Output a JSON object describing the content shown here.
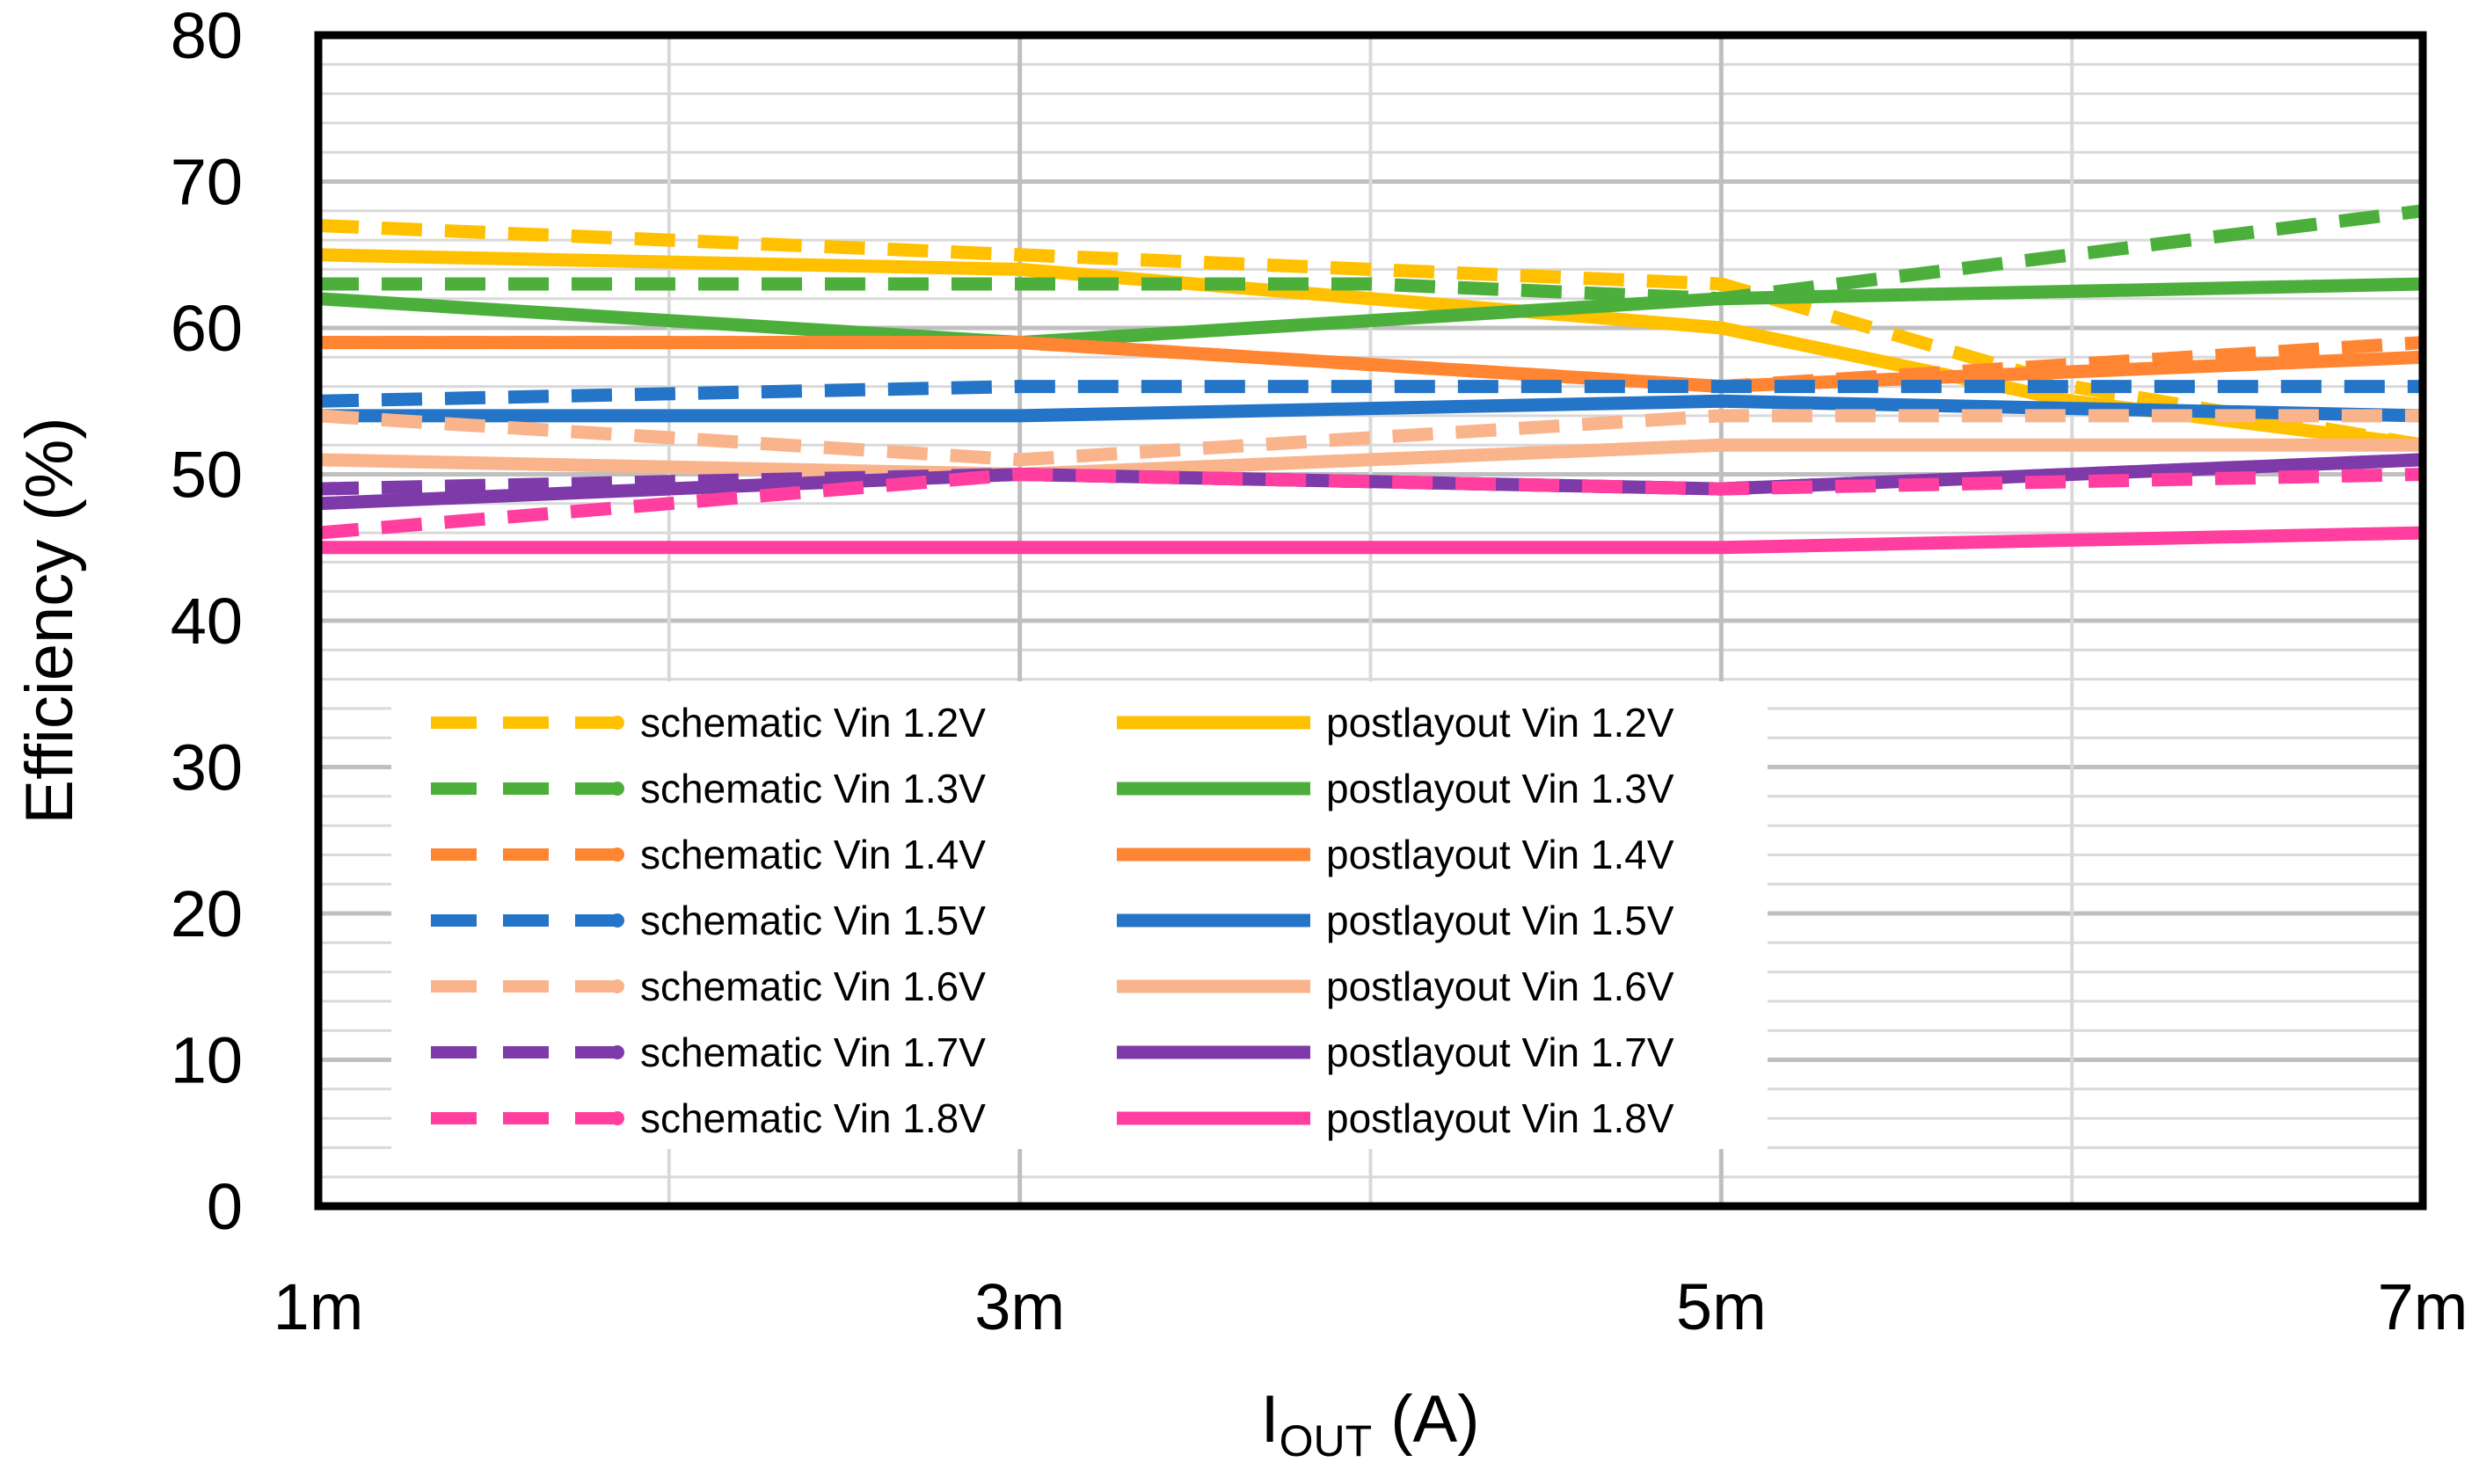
{
  "chart_data": {
    "type": "line",
    "title": "",
    "xlabel_main": "I",
    "xlabel_sub": "OUT",
    "xlabel_unit": " (A)",
    "ylabel": "Efficiency (%)",
    "x": [
      1,
      2,
      3,
      4,
      5,
      6,
      7
    ],
    "x_tick_values": [
      1,
      3,
      5,
      7
    ],
    "x_tick_labels": [
      "1m",
      "3m",
      "5m",
      "7m"
    ],
    "xlim": [
      1,
      7
    ],
    "ylim": [
      0,
      80
    ],
    "y_ticks": [
      0,
      10,
      20,
      30,
      40,
      50,
      60,
      70,
      80
    ],
    "y_tick_labels": [
      "0",
      "10",
      "20",
      "30",
      "40",
      "50",
      "60",
      "70",
      "80"
    ],
    "grid": true,
    "legend_position": "lower-center-inside",
    "series": [
      {
        "name": "schematic Vin 1.2V",
        "style": "dashed",
        "color": "#FFC000",
        "values": [
          67,
          66,
          65,
          64,
          63,
          56,
          52
        ]
      },
      {
        "name": "postlayout Vin 1.2V",
        "style": "solid",
        "color": "#FFC000",
        "values": [
          65,
          64.5,
          64,
          62,
          60,
          55,
          52
        ]
      },
      {
        "name": "schematic Vin 1.3V",
        "style": "dashed",
        "color": "#4CAF3C",
        "values": [
          63,
          63,
          63,
          63,
          62,
          65,
          68
        ]
      },
      {
        "name": "postlayout Vin 1.3V",
        "style": "solid",
        "color": "#4CAF3C",
        "values": [
          62,
          60.5,
          59,
          60.5,
          62,
          62.5,
          63
        ]
      },
      {
        "name": "schematic Vin 1.4V",
        "style": "dashed",
        "color": "#FF8533",
        "values": [
          59,
          59,
          59,
          57.5,
          56,
          57.5,
          59
        ]
      },
      {
        "name": "postlayout Vin 1.4V",
        "style": "solid",
        "color": "#FF8533",
        "values": [
          59,
          59,
          59,
          57.5,
          56,
          57,
          58
        ]
      },
      {
        "name": "schematic Vin 1.5V",
        "style": "dashed",
        "color": "#2474C8",
        "values": [
          55,
          55.5,
          56,
          56,
          56,
          56,
          56
        ]
      },
      {
        "name": "postlayout Vin 1.5V",
        "style": "solid",
        "color": "#2474C8",
        "values": [
          54,
          54,
          54,
          54.5,
          55,
          54.5,
          54
        ]
      },
      {
        "name": "schematic Vin 1.6V",
        "style": "dashed",
        "color": "#F9B48C",
        "values": [
          54,
          52.5,
          51,
          52.5,
          54,
          54,
          54
        ]
      },
      {
        "name": "postlayout Vin 1.6V",
        "style": "solid",
        "color": "#F9B48C",
        "values": [
          51,
          50.5,
          50,
          51,
          52,
          52,
          52
        ]
      },
      {
        "name": "schematic Vin 1.7V",
        "style": "dashed",
        "color": "#7D3AA8",
        "values": [
          49,
          49.5,
          50,
          49.5,
          49,
          50,
          51
        ]
      },
      {
        "name": "postlayout Vin 1.7V",
        "style": "solid",
        "color": "#7D3AA8",
        "values": [
          48,
          49,
          50,
          49.5,
          49,
          50,
          51
        ]
      },
      {
        "name": "schematic Vin 1.8V",
        "style": "dashed",
        "color": "#FF3EA0",
        "values": [
          46,
          48,
          50,
          49.5,
          49,
          49.5,
          50
        ]
      },
      {
        "name": "postlayout Vin 1.8V",
        "style": "solid",
        "color": "#FF3EA0",
        "values": [
          45,
          45,
          45,
          45,
          45,
          45.5,
          46
        ]
      }
    ],
    "legend_order": [
      0,
      1,
      2,
      3,
      4,
      5,
      6,
      7,
      8,
      9,
      10,
      11,
      12,
      13
    ]
  }
}
